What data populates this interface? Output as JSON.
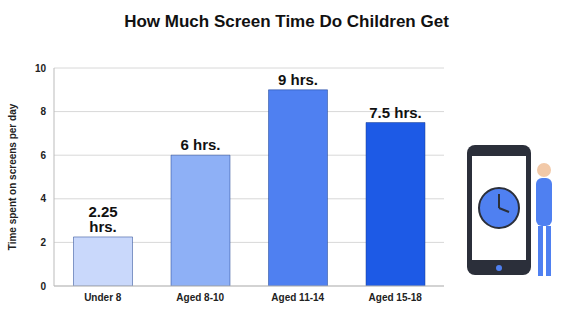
{
  "chart_data": {
    "type": "bar",
    "title": "How Much Screen Time Do Children Get",
    "ylabel": "Time spent on screens per day",
    "categories": [
      "Under 8",
      "Aged 8-10",
      "Aged 11-14",
      "Aged 15-18"
    ],
    "values": [
      2.25,
      6,
      9,
      7.5
    ],
    "value_labels": [
      "2.25 hrs.",
      "6 hrs.",
      "9 hrs.",
      "7.5 hrs."
    ],
    "colors": [
      "#c9d8fb",
      "#8eb0f6",
      "#4f80f1",
      "#1d5ae6"
    ],
    "ylim": [
      0,
      10
    ],
    "yticks": [
      0,
      2,
      4,
      6,
      8,
      10
    ],
    "grid": true,
    "data_labels": true
  }
}
